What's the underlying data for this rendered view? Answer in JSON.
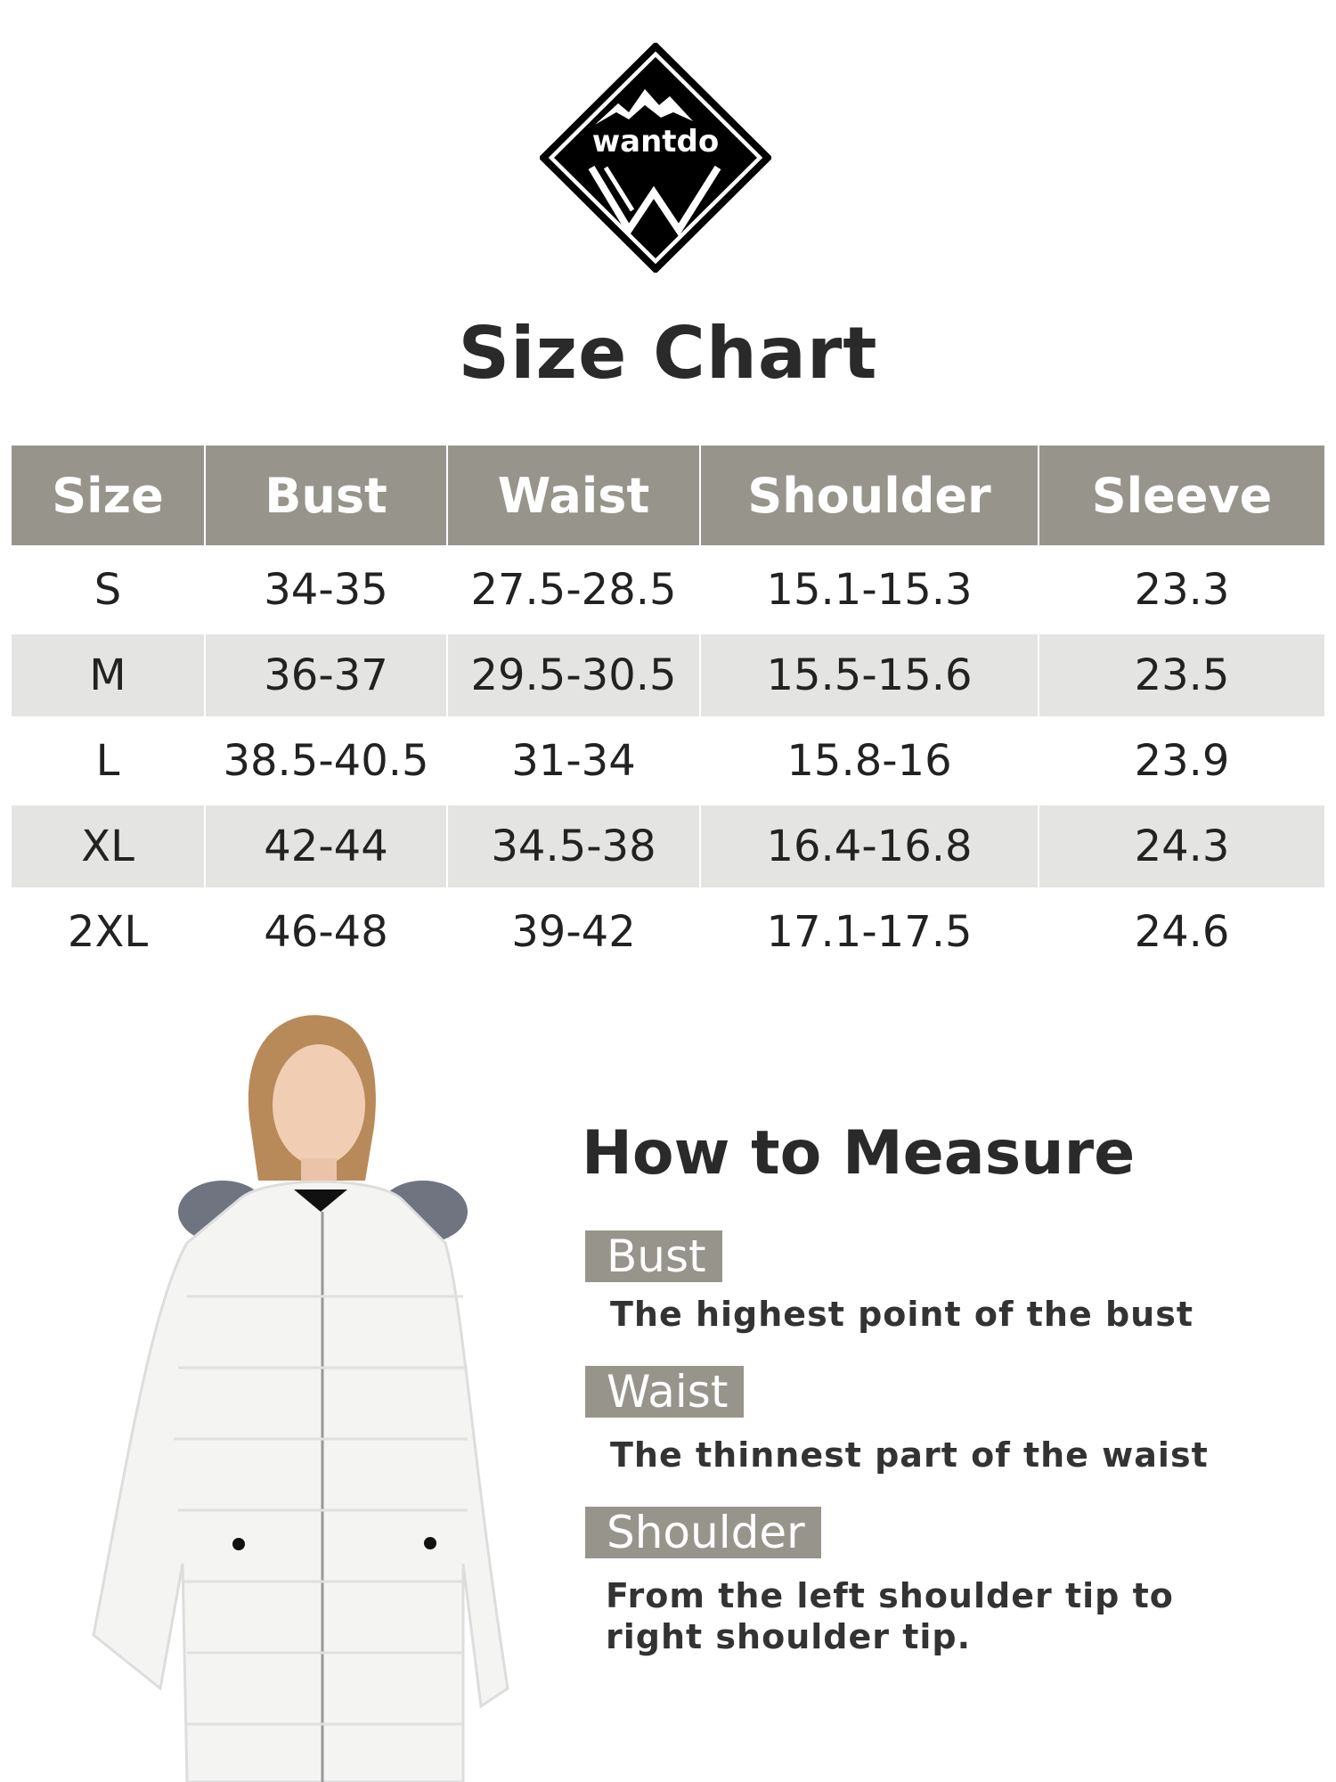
{
  "brand": {
    "logo_text": "wantdo"
  },
  "title": "Size Chart",
  "table": {
    "headers": [
      "Size",
      "Bust",
      "Waist",
      "Shoulder",
      "Sleeve"
    ],
    "rows": [
      [
        "S",
        "34-35",
        "27.5-28.5",
        "15.1-15.3",
        "23.3"
      ],
      [
        "M",
        "36-37",
        "29.5-30.5",
        "15.5-15.6",
        "23.5"
      ],
      [
        "L",
        "38.5-40.5",
        "31-34",
        "15.8-16",
        "23.9"
      ],
      [
        "XL",
        "42-44",
        "34.5-38",
        "16.4-16.8",
        "24.3"
      ],
      [
        "2XL",
        "46-48",
        "39-42",
        "17.1-17.5",
        "24.6"
      ]
    ]
  },
  "how_to_measure": {
    "heading": "How to Measure",
    "items": [
      {
        "label": "Bust",
        "description": "The highest point of the bust"
      },
      {
        "label": "Waist",
        "description": "The thinnest part of the waist"
      },
      {
        "label": "Shoulder",
        "description": "From the left shoulder tip to right shoulder tip."
      }
    ]
  },
  "colors": {
    "header_bg": "#97958b",
    "stripe_bg": "#e4e4e3",
    "text": "#222222"
  }
}
